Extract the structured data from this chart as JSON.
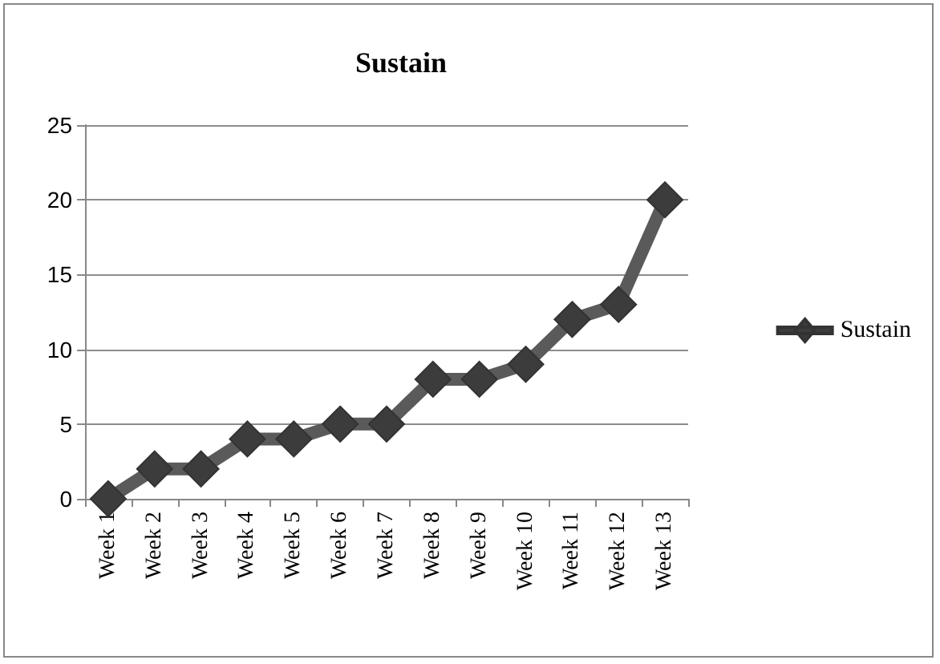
{
  "chart_data": {
    "type": "line",
    "title": "Sustain",
    "categories": [
      "Week 1",
      "Week 2",
      "Week 3",
      "Week 4",
      "Week 5",
      "Week 6",
      "Week 7",
      "Week 8",
      "Week 9",
      "Week 10",
      "Week 11",
      "Week 12",
      "Week 13"
    ],
    "series": [
      {
        "name": "Sustain",
        "color": "#5a5a5a",
        "values": [
          0,
          2,
          2,
          4,
          4,
          5,
          5,
          8,
          8,
          9,
          12,
          13,
          20
        ]
      }
    ],
    "ylim": [
      0,
      25
    ],
    "yticks": [
      0,
      5,
      10,
      15,
      20,
      25
    ],
    "grid": "y",
    "legend": "right",
    "marker": "diamond",
    "line_style": "solid"
  }
}
